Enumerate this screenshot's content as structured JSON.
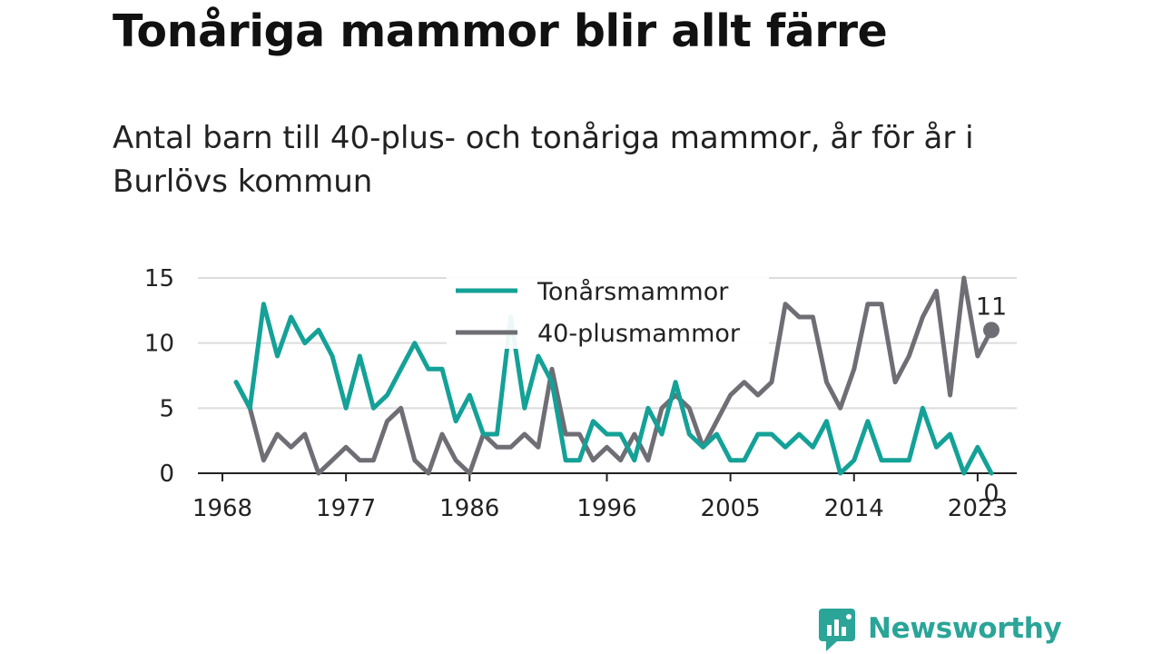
{
  "title": "Tonåriga mammor blir allt färre",
  "subtitle": "Antal barn till 40-plus- och tonåriga mammor, år för år i Burlövs kommun",
  "brand": "Newsworthy",
  "colors": {
    "teen": "#14a197",
    "forty": "#6f6e75",
    "brand": "#2aa598"
  },
  "chart_data": {
    "type": "line",
    "xlim": [
      1968,
      2024
    ],
    "ylim": [
      0,
      15
    ],
    "x_ticks": [
      1968,
      1977,
      1986,
      1996,
      2005,
      2014,
      2023
    ],
    "y_ticks": [
      0,
      5,
      10,
      15
    ],
    "legend_position": "top-center",
    "x": [
      1969,
      1970,
      1971,
      1972,
      1973,
      1974,
      1975,
      1976,
      1977,
      1978,
      1979,
      1980,
      1981,
      1982,
      1983,
      1984,
      1985,
      1986,
      1987,
      1988,
      1989,
      1990,
      1991,
      1992,
      1993,
      1994,
      1995,
      1996,
      1997,
      1998,
      1999,
      2000,
      2001,
      2002,
      2003,
      2004,
      2005,
      2006,
      2007,
      2008,
      2009,
      2010,
      2011,
      2012,
      2013,
      2014,
      2015,
      2016,
      2017,
      2018,
      2019,
      2020,
      2021,
      2022,
      2023,
      2024
    ],
    "series": [
      {
        "name": "Tonårsmammor",
        "values": [
          7,
          5,
          13,
          9,
          12,
          10,
          11,
          9,
          5,
          9,
          5,
          6,
          8,
          10,
          8,
          8,
          4,
          6,
          3,
          3,
          12,
          5,
          9,
          7,
          1,
          1,
          4,
          3,
          3,
          1,
          5,
          3,
          7,
          3,
          2,
          3,
          1,
          1,
          3,
          3,
          2,
          3,
          2,
          4,
          0,
          1,
          4,
          1,
          1,
          1,
          5,
          2,
          3,
          0,
          2,
          0
        ],
        "end_label": "0"
      },
      {
        "name": "40-plusmammor",
        "values": [
          7,
          5,
          1,
          3,
          2,
          3,
          0,
          1,
          2,
          1,
          1,
          4,
          5,
          1,
          0,
          3,
          1,
          0,
          3,
          2,
          2,
          3,
          2,
          8,
          3,
          3,
          1,
          2,
          1,
          3,
          1,
          5,
          6,
          5,
          2,
          4,
          6,
          7,
          6,
          7,
          13,
          12,
          12,
          7,
          5,
          8,
          13,
          13,
          7,
          9,
          12,
          14,
          6,
          15,
          9,
          11
        ],
        "end_label": "11"
      }
    ]
  }
}
